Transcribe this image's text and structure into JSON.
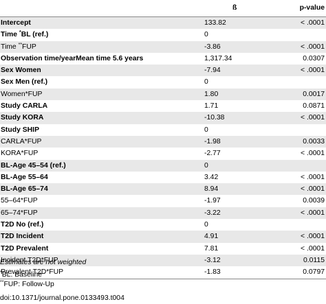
{
  "table": {
    "headers": {
      "label": "",
      "beta": "ß",
      "pvalue": "p-value"
    },
    "rows": [
      {
        "label": "Intercept",
        "sup": "",
        "label_rest": "",
        "beta": "133.82",
        "p": "< .0001",
        "bold": true
      },
      {
        "label": "Time ",
        "sup": "*",
        "label_rest": "BL (ref.)",
        "beta": "0",
        "p": "",
        "bold": true
      },
      {
        "label": "Time ",
        "sup": "**",
        "label_rest": "FUP",
        "beta": "-3.86",
        "p": "< .0001",
        "bold": false
      },
      {
        "label": "Observation time/yearMean time 5.6 years",
        "sup": "",
        "label_rest": "",
        "beta": "1,317.34",
        "p": "0.0307",
        "bold": true
      },
      {
        "label": "Sex Women",
        "sup": "",
        "label_rest": "",
        "beta": "-7.94",
        "p": "< .0001",
        "bold": true
      },
      {
        "label": "Sex Men (ref.)",
        "sup": "",
        "label_rest": "",
        "beta": "0",
        "p": "",
        "bold": true
      },
      {
        "label": "Women*FUP",
        "sup": "",
        "label_rest": "",
        "beta": "1.80",
        "p": "0.0017",
        "bold": false
      },
      {
        "label": "Study CARLA",
        "sup": "",
        "label_rest": "",
        "beta": "1.71",
        "p": "0.0871",
        "bold": true
      },
      {
        "label": "Study KORA",
        "sup": "",
        "label_rest": "",
        "beta": "-10.38",
        "p": "< .0001",
        "bold": true
      },
      {
        "label": "Study SHIP",
        "sup": "",
        "label_rest": "",
        "beta": "0",
        "p": "",
        "bold": true
      },
      {
        "label": "CARLA*FUP",
        "sup": "",
        "label_rest": "",
        "beta": "-1.98",
        "p": "0.0033",
        "bold": false
      },
      {
        "label": "KORA*FUP",
        "sup": "",
        "label_rest": "",
        "beta": "-2.77",
        "p": "< .0001",
        "bold": false
      },
      {
        "label": "BL-Age 45–54 (ref.)",
        "sup": "",
        "label_rest": "",
        "beta": "0",
        "p": "",
        "bold": true
      },
      {
        "label": "BL-Age 55–64",
        "sup": "",
        "label_rest": "",
        "beta": "3.42",
        "p": "< .0001",
        "bold": true
      },
      {
        "label": "BL-Age 65–74",
        "sup": "",
        "label_rest": "",
        "beta": "8.94",
        "p": "< .0001",
        "bold": true
      },
      {
        "label": "55–64*FUP",
        "sup": "",
        "label_rest": "",
        "beta": "-1.97",
        "p": "0.0039",
        "bold": false
      },
      {
        "label": "65–74*FUP",
        "sup": "",
        "label_rest": "",
        "beta": "-3.22",
        "p": "< .0001",
        "bold": false
      },
      {
        "label": "T2D No (ref.)",
        "sup": "",
        "label_rest": "",
        "beta": "0",
        "p": "",
        "bold": true
      },
      {
        "label": "T2D Incident",
        "sup": "",
        "label_rest": "",
        "beta": "4.91",
        "p": "< .0001",
        "bold": true
      },
      {
        "label": "T2D Prevalent",
        "sup": "",
        "label_rest": "",
        "beta": "7.81",
        "p": "< .0001",
        "bold": true
      },
      {
        "label": "Incident T2D*FUP",
        "sup": "",
        "label_rest": "",
        "beta": "-3.12",
        "p": "0.0115",
        "bold": false
      },
      {
        "label": "Prevalent T2D*FUP",
        "sup": "",
        "label_rest": "",
        "beta": "-1.83",
        "p": "0.0797",
        "bold": false
      }
    ]
  },
  "notes": {
    "estimates": "Estimates are not weighted",
    "bl_sup": "*",
    "bl_text": "BL: Baseline",
    "fup_sup": "**",
    "fup_text": "FUP: Follow-Up"
  },
  "doi": "doi:10.1371/journal.pone.0133493.t004"
}
